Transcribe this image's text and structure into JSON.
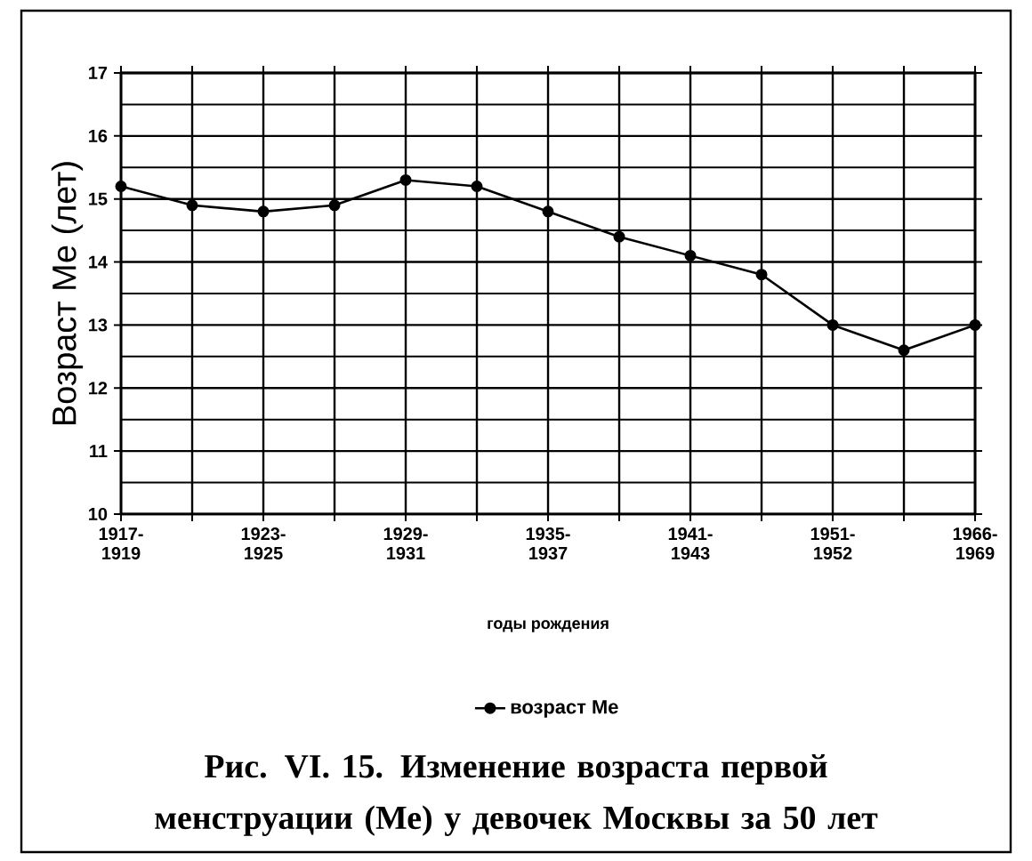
{
  "chart_data": {
    "type": "line",
    "title": "Рис. VI. 15. Изменение возраста первой менструации (Ме) у девочек Москвы за 50 лет",
    "xlabel": "годы рождения",
    "ylabel": "Возраст Ме (лет)",
    "categories": [
      "1917-1919",
      null,
      "1923-1925",
      null,
      "1929-1931",
      null,
      "1935-1937",
      null,
      "1941-1943",
      null,
      "1951-1952",
      null,
      "1966-1969"
    ],
    "series": [
      {
        "name": "возраст Ме",
        "color": "#000000",
        "values": [
          15.2,
          14.9,
          14.8,
          14.9,
          15.3,
          15.2,
          14.8,
          14.4,
          14.1,
          13.8,
          13.0,
          12.6,
          13.0
        ]
      }
    ],
    "ylim": [
      10,
      17
    ],
    "yticks": [
      10,
      11,
      12,
      13,
      14,
      15,
      16,
      17
    ],
    "grid": true,
    "legend": "bottom",
    "marker": "circle",
    "line_style": "solid"
  }
}
